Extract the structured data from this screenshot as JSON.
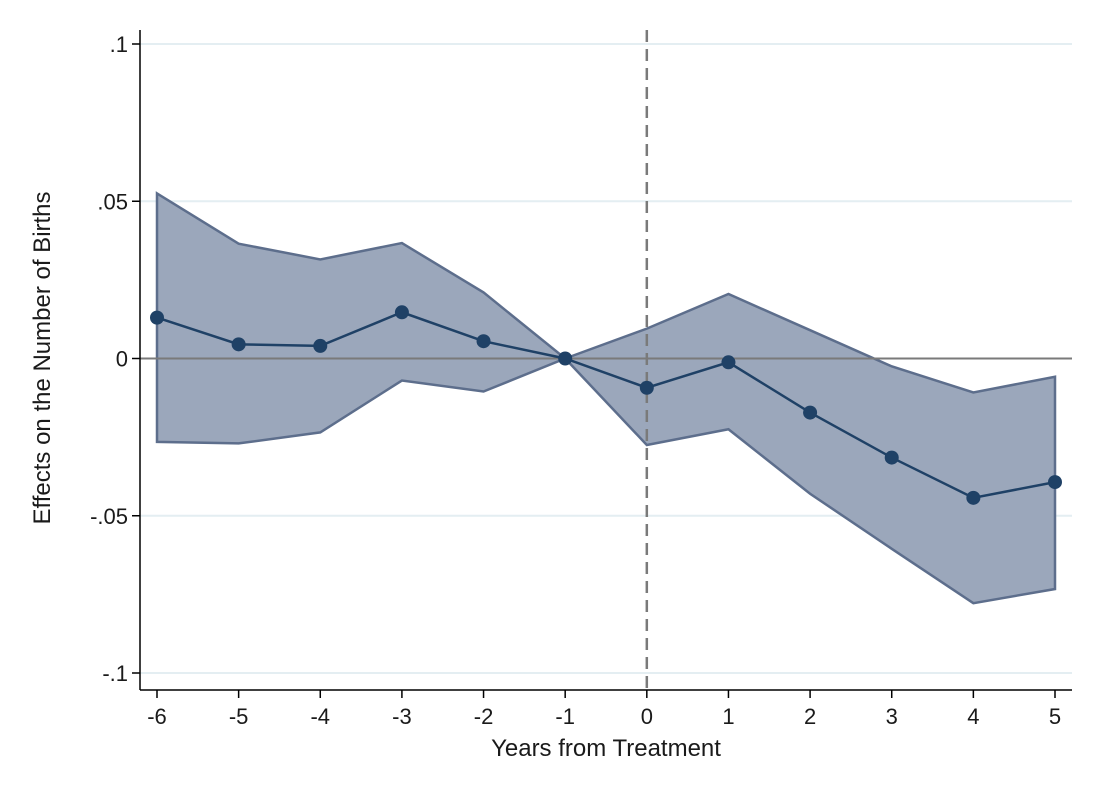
{
  "chart_data": {
    "type": "line",
    "title": "",
    "xlabel": "Years from Treatment",
    "ylabel": "Effects on the Number of Births",
    "x": [
      -6,
      -5,
      -4,
      -3,
      -2,
      -1,
      0,
      1,
      2,
      3,
      4,
      5
    ],
    "x_tick_labels": [
      "-6",
      "-5",
      "-4",
      "-3",
      "-2",
      "-1",
      "0",
      "1",
      "2",
      "3",
      "4",
      "5"
    ],
    "y_ticks": [
      0.1,
      0.05,
      0,
      -0.05,
      -0.1
    ],
    "y_tick_labels": [
      ".1",
      ".05",
      "0",
      "-.05",
      "-.1"
    ],
    "xlim": [
      -6,
      5
    ],
    "ylim": [
      -0.105,
      0.105
    ],
    "grid": true,
    "reference_lines": {
      "horizontal_y": 0,
      "vertical_dashed_x": 0
    },
    "series": [
      {
        "values": [
          0.013,
          0.0045,
          0.004,
          0.0147,
          0.0055,
          0.0,
          -0.0093,
          -0.0012,
          -0.0172,
          -0.0315,
          -0.0443,
          -0.0393
        ],
        "ci_upper": [
          0.0525,
          0.0365,
          0.0315,
          0.0367,
          0.021,
          0.0,
          0.0095,
          0.0205,
          0.009,
          -0.0025,
          -0.0108,
          -0.0058
        ],
        "ci_lower": [
          -0.0265,
          -0.027,
          -0.0235,
          -0.007,
          -0.0105,
          0.0,
          -0.0275,
          -0.0225,
          -0.043,
          -0.0605,
          -0.0778,
          -0.0733
        ]
      }
    ],
    "colors": {
      "line": "#1f4166",
      "marker": "#1f4166",
      "band_fill": "#9ba7bb",
      "band_edge": "#5d6e8c",
      "zero_line": "#7a7a7a",
      "vline": "#7a7a7a",
      "grid": "#e4eef2",
      "axis": "#000000"
    }
  }
}
